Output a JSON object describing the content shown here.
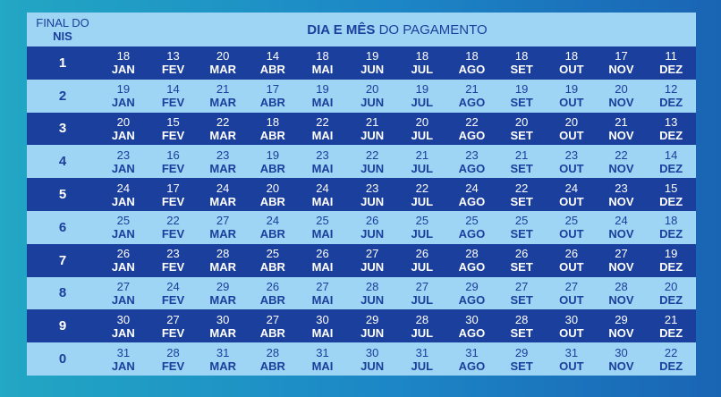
{
  "header": {
    "final_line1": "FINAL DO",
    "final_line2": "NIS",
    "title_bold": "DIA E MÊS",
    "title_rest": " DO PAGAMENTO"
  },
  "rows": [
    {
      "nis": "1",
      "days": [
        "18",
        "13",
        "20",
        "14",
        "18",
        "19",
        "18",
        "18",
        "18",
        "18",
        "17",
        "11"
      ]
    },
    {
      "nis": "2",
      "days": [
        "19",
        "14",
        "21",
        "17",
        "19",
        "20",
        "19",
        "21",
        "19",
        "19",
        "20",
        "12"
      ]
    },
    {
      "nis": "3",
      "days": [
        "20",
        "15",
        "22",
        "18",
        "22",
        "21",
        "20",
        "22",
        "20",
        "20",
        "21",
        "13"
      ]
    },
    {
      "nis": "4",
      "days": [
        "23",
        "16",
        "23",
        "19",
        "23",
        "22",
        "21",
        "23",
        "21",
        "23",
        "22",
        "14"
      ]
    },
    {
      "nis": "5",
      "days": [
        "24",
        "17",
        "24",
        "20",
        "24",
        "23",
        "22",
        "24",
        "22",
        "24",
        "23",
        "15"
      ]
    },
    {
      "nis": "6",
      "days": [
        "25",
        "22",
        "27",
        "24",
        "25",
        "26",
        "25",
        "25",
        "25",
        "25",
        "24",
        "18"
      ]
    },
    {
      "nis": "7",
      "days": [
        "26",
        "23",
        "28",
        "25",
        "26",
        "27",
        "26",
        "28",
        "26",
        "26",
        "27",
        "19"
      ]
    },
    {
      "nis": "8",
      "days": [
        "27",
        "24",
        "29",
        "26",
        "27",
        "28",
        "27",
        "29",
        "27",
        "27",
        "28",
        "20"
      ]
    },
    {
      "nis": "9",
      "days": [
        "30",
        "27",
        "30",
        "27",
        "30",
        "29",
        "28",
        "30",
        "28",
        "30",
        "29",
        "21"
      ]
    },
    {
      "nis": "0",
      "days": [
        "31",
        "28",
        "31",
        "28",
        "31",
        "30",
        "31",
        "31",
        "29",
        "31",
        "30",
        "22"
      ]
    }
  ],
  "months": [
    "JAN",
    "FEV",
    "MAR",
    "ABR",
    "MAI",
    "JUN",
    "JUL",
    "AGO",
    "SET",
    "OUT",
    "NOV",
    "DEZ"
  ]
}
